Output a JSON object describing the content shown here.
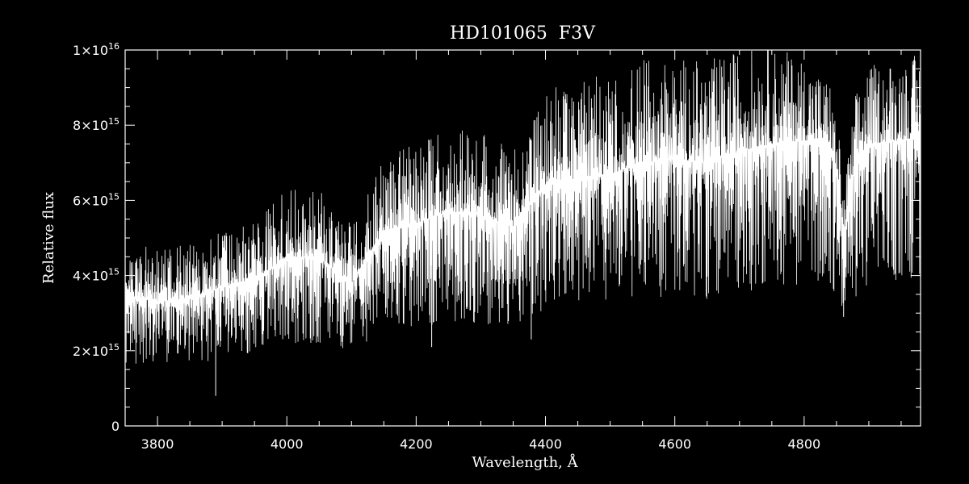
{
  "chart_data": {
    "type": "line",
    "title": "HD101065  F3V",
    "xlabel": "Wavelength, Å",
    "ylabel": "Relative flux",
    "xlim": [
      3750,
      4980
    ],
    "ylim": [
      0,
      1e+16
    ],
    "grid": false,
    "colors": {
      "background": "#000000",
      "foreground": "#ffffff"
    },
    "x_ticks": [
      {
        "value": 3800,
        "label": "3800"
      },
      {
        "value": 4000,
        "label": "4000"
      },
      {
        "value": 4200,
        "label": "4200"
      },
      {
        "value": 4400,
        "label": "4400"
      },
      {
        "value": 4600,
        "label": "4600"
      },
      {
        "value": 4800,
        "label": "4800"
      }
    ],
    "y_ticks": [
      {
        "value": 0,
        "mantissa": "0",
        "exponent": ""
      },
      {
        "value": 2000000000000000.0,
        "mantissa": "2×10",
        "exponent": "15"
      },
      {
        "value": 4000000000000000.0,
        "mantissa": "4×10",
        "exponent": "15"
      },
      {
        "value": 6000000000000000.0,
        "mantissa": "6×10",
        "exponent": "15"
      },
      {
        "value": 8000000000000000.0,
        "mantissa": "8×10",
        "exponent": "15"
      },
      {
        "value": 1e+16,
        "mantissa": "1×10",
        "exponent": "16"
      }
    ],
    "series": [
      {
        "x": [
          3750,
          3800,
          3850,
          3900,
          3950,
          4000,
          4050,
          4100,
          4150,
          4200,
          4250,
          4300,
          4350,
          4400,
          4450,
          4500,
          4550,
          4600,
          4650,
          4700,
          4750,
          4800,
          4840,
          4855,
          4861,
          4870,
          4880,
          4900,
          4950,
          4980
        ],
        "continuum": [
          3500000000000000.0,
          3300000000000000.0,
          3400000000000000.0,
          3700000000000000.0,
          3900000000000000.0,
          4500000000000000.0,
          4500000000000000.0,
          3800000000000000.0,
          5200000000000000.0,
          5400000000000000.0,
          5700000000000000.0,
          5600000000000000.0,
          5300000000000000.0,
          6400000000000000.0,
          6600000000000000.0,
          6700000000000000.0,
          7000000000000000.0,
          7100000000000000.0,
          7000000000000000.0,
          7300000000000000.0,
          7500000000000000.0,
          7600000000000000.0,
          7500000000000000.0,
          6300000000000000.0,
          5000000000000000.0,
          6100000000000000.0,
          7000000000000000.0,
          7500000000000000.0,
          7600000000000000.0,
          7700000000000000.0
        ],
        "line_depth": [
          1700000000000000.0,
          1500000000000000.0,
          1600000000000000.0,
          1800000000000000.0,
          1800000000000000.0,
          2100000000000000.0,
          2100000000000000.0,
          1700000000000000.0,
          2400000000000000.0,
          2600000000000000.0,
          2700000000000000.0,
          2600000000000000.0,
          2500000000000000.0,
          3000000000000000.0,
          3100000000000000.0,
          3200000000000000.0,
          3300000000000000.0,
          3300000000000000.0,
          3300000000000000.0,
          3400000000000000.0,
          3500000000000000.0,
          3500000000000000.0,
          3400000000000000.0,
          3000000000000000.0,
          2200000000000000.0,
          2900000000000000.0,
          3300000000000000.0,
          3400000000000000.0,
          3500000000000000.0,
          3500000000000000.0
        ],
        "peak_excess": [
          1400000000000000.0,
          1300000000000000.0,
          1400000000000000.0,
          1400000000000000.0,
          1500000000000000.0,
          1700000000000000.0,
          1700000000000000.0,
          1500000000000000.0,
          1900000000000000.0,
          2000000000000000.0,
          2100000000000000.0,
          2100000000000000.0,
          2000000000000000.0,
          2400000000000000.0,
          2500000000000000.0,
          2600000000000000.0,
          2600000000000000.0,
          2600000000000000.0,
          2600000000000000.0,
          2600000000000000.0,
          2500000000000000.0,
          2100000000000000.0,
          1600000000000000.0,
          1200000000000000.0,
          1000000000000000.0,
          1400000000000000.0,
          1800000000000000.0,
          2000000000000000.0,
          2100000000000000.0,
          2100000000000000.0
        ]
      }
    ],
    "notable_lines": [
      {
        "wavelength": 3890,
        "flux": 800000000000000.0
      },
      {
        "wavelength": 4224,
        "flux": 2100000000000000.0
      },
      {
        "wavelength": 4378,
        "flux": 2300000000000000.0
      },
      {
        "wavelength": 4665,
        "flux": 3600000000000000.0
      },
      {
        "wavelength": 4861,
        "flux": 2900000000000000.0
      }
    ]
  }
}
